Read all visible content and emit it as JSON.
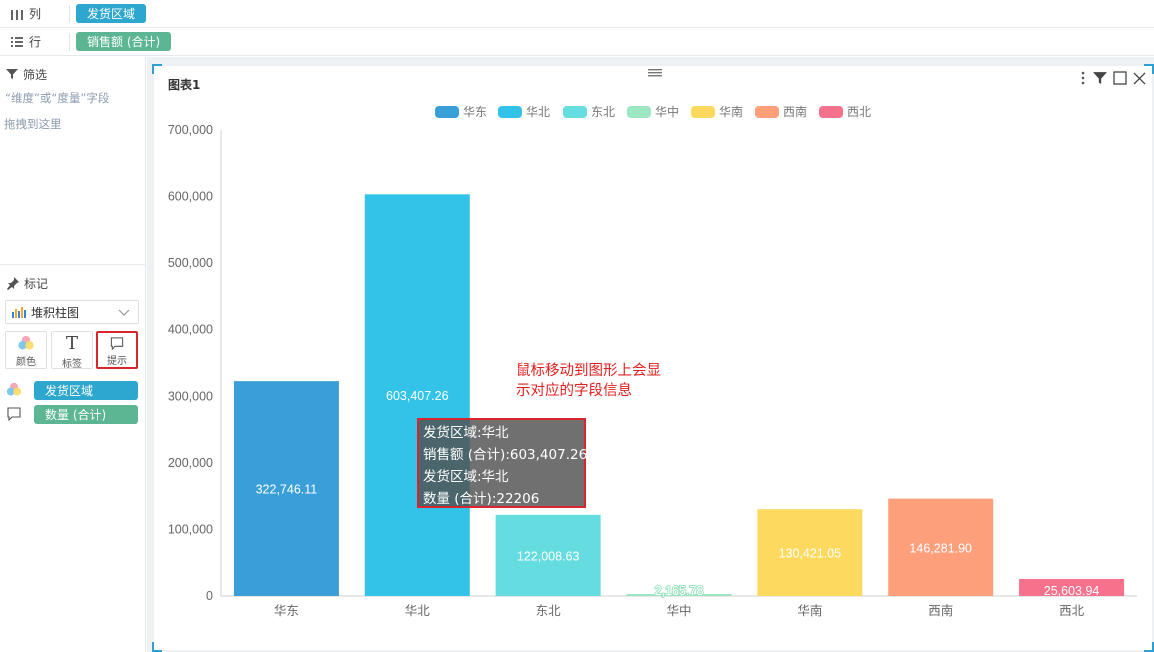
{
  "shelves": {
    "columns": {
      "label": "列",
      "pill": "发货区域"
    },
    "rows": {
      "label": "行",
      "pill": "销售额 (合计)"
    }
  },
  "filter": {
    "title": "筛选",
    "hint_line1": "“维度”或“度量”字段",
    "hint_line2": "拖拽到这里"
  },
  "marks": {
    "title": "标记",
    "chart_type": "堆积柱图",
    "buttons": {
      "color": "颜色",
      "label": "标签",
      "tooltip": "提示"
    },
    "encodings": [
      {
        "icon": "color-encoding-icon",
        "field": "发货区域"
      },
      {
        "icon": "tooltip-encoding-icon",
        "field": "数量 (合计)"
      }
    ]
  },
  "chart_card": {
    "title": "图表1"
  },
  "annotation": {
    "line1": "鼠标移动到图形上会显",
    "line2": "示对应的字段信息"
  },
  "tooltip": {
    "line1": "发货区域:华北",
    "line2": "销售额 (合计):603,407.26",
    "line3": "发货区域:华北",
    "line4": "数量 (合计):22206"
  },
  "colors": {
    "dimension_pill": "#2ea7cf",
    "measure_pill": "#5cb694",
    "highlight_red": "#d7272c"
  },
  "chart_data": {
    "type": "bar",
    "categories": [
      "华东",
      "华北",
      "东北",
      "华中",
      "华南",
      "西南",
      "西北"
    ],
    "values": [
      322746.11,
      603407.26,
      122008.63,
      2165.78,
      130421.05,
      146281.9,
      25603.94
    ],
    "data_labels": [
      "322,746.11",
      "603,407.26",
      "122,008.63",
      "2,165.78",
      "130,421.05",
      "146,281.90",
      "25,603.94"
    ],
    "colors": [
      "#3a9fd8",
      "#33c3e8",
      "#65dde0",
      "#9de6c2",
      "#fdda5f",
      "#fe9f7c",
      "#f7718d"
    ],
    "legend": [
      "华东",
      "华北",
      "东北",
      "华中",
      "华南",
      "西南",
      "西北"
    ],
    "legend_position": "top-center",
    "ylim": [
      0,
      700000
    ],
    "yticks": [
      0,
      100000,
      200000,
      300000,
      400000,
      500000,
      600000,
      700000
    ],
    "ytick_labels": [
      "0",
      "100,000",
      "200,000",
      "300,000",
      "400,000",
      "500,000",
      "600,000",
      "700,000"
    ],
    "title": "",
    "xlabel": "",
    "ylabel": "",
    "grid": false
  }
}
